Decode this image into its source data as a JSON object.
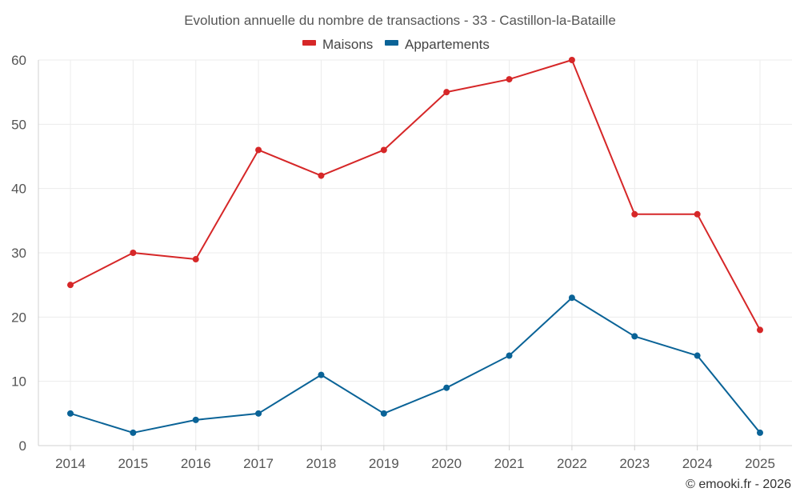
{
  "chart_data": {
    "type": "line",
    "title": "Evolution annuelle du nombre de transactions - 33 - Castillon-la-Bataille",
    "xlabel": "",
    "ylabel": "",
    "categories": [
      "2014",
      "2015",
      "2016",
      "2017",
      "2018",
      "2019",
      "2020",
      "2021",
      "2022",
      "2023",
      "2024",
      "2025"
    ],
    "ylim": [
      0,
      60
    ],
    "yticks": [
      "0",
      "10",
      "20",
      "30",
      "40",
      "50",
      "60"
    ],
    "grid": true,
    "legend_position": "top-center",
    "series": [
      {
        "name": "Maisons",
        "color": "#d62728",
        "values": [
          25,
          30,
          29,
          46,
          42,
          46,
          55,
          57,
          60,
          36,
          36,
          18
        ]
      },
      {
        "name": "Appartements",
        "color": "#0a6397",
        "values": [
          5,
          2,
          4,
          5,
          11,
          5,
          9,
          14,
          23,
          17,
          14,
          2
        ]
      }
    ]
  },
  "credit": "© emooki.fr - 2026"
}
